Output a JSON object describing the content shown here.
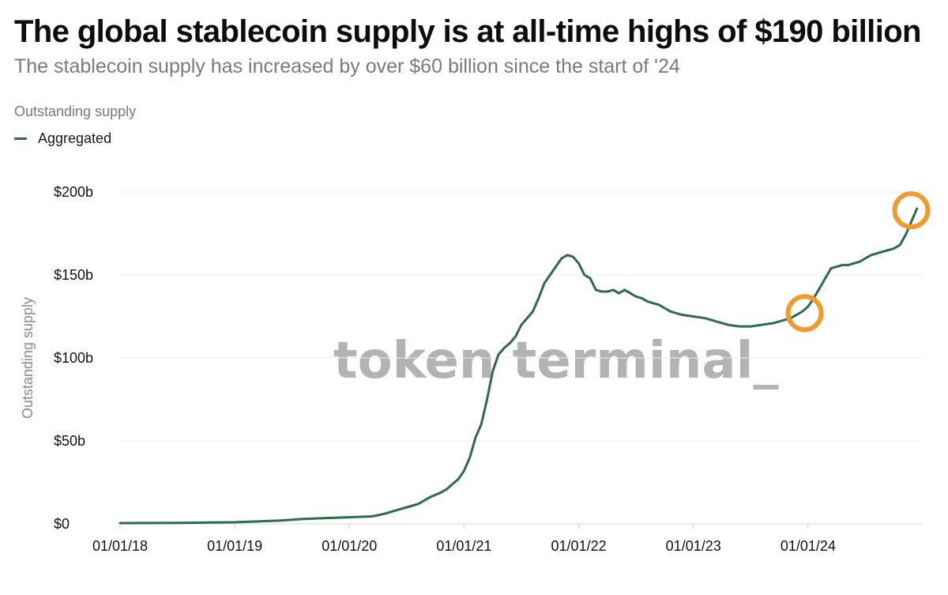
{
  "title": "The global stablecoin supply is at all-time highs of $190 billion",
  "subtitle": "The stablecoin supply has increased by over $60 billion since the start of '24",
  "legend": {
    "title": "Outstanding supply",
    "items": [
      {
        "label": "Aggregated",
        "color": "#2e6b48"
      }
    ]
  },
  "watermark": "token terminal_",
  "colors": {
    "line": "#2e6b48",
    "highlight": "#f39a2e",
    "grid": "#ececec"
  },
  "chart_data": {
    "type": "line",
    "title": "The global stablecoin supply is at all-time highs of $190 billion",
    "xlabel": "",
    "ylabel": "Outstanding supply",
    "ylim": [
      0,
      200
    ],
    "xlim": [
      2018.0,
      2025.0
    ],
    "legend_position": "top-left",
    "grid": true,
    "y_ticks": [
      {
        "value": 0,
        "label": "$0"
      },
      {
        "value": 50,
        "label": "$50b"
      },
      {
        "value": 100,
        "label": "$100b"
      },
      {
        "value": 150,
        "label": "$150b"
      },
      {
        "value": 200,
        "label": "$200b"
      }
    ],
    "x_ticks": [
      {
        "value": 2018,
        "label": "01/01/18"
      },
      {
        "value": 2019,
        "label": "01/01/19"
      },
      {
        "value": 2020,
        "label": "01/01/20"
      },
      {
        "value": 2021,
        "label": "01/01/21"
      },
      {
        "value": 2022,
        "label": "01/01/22"
      },
      {
        "value": 2023,
        "label": "01/01/23"
      },
      {
        "value": 2024,
        "label": "01/01/24"
      }
    ],
    "series": [
      {
        "name": "Aggregated",
        "x": [
          2018.0,
          2018.5,
          2019.0,
          2019.2,
          2019.4,
          2019.5,
          2019.6,
          2019.8,
          2020.0,
          2020.2,
          2020.3,
          2020.4,
          2020.5,
          2020.6,
          2020.7,
          2020.8,
          2020.85,
          2020.9,
          2020.95,
          2021.0,
          2021.05,
          2021.1,
          2021.15,
          2021.2,
          2021.25,
          2021.3,
          2021.35,
          2021.4,
          2021.45,
          2021.5,
          2021.55,
          2021.6,
          2021.65,
          2021.7,
          2021.75,
          2021.8,
          2021.85,
          2021.9,
          2021.95,
          2022.0,
          2022.05,
          2022.1,
          2022.15,
          2022.2,
          2022.25,
          2022.3,
          2022.35,
          2022.4,
          2022.45,
          2022.5,
          2022.55,
          2022.6,
          2022.65,
          2022.7,
          2022.75,
          2022.8,
          2022.85,
          2022.9,
          2023.0,
          2023.1,
          2023.2,
          2023.3,
          2023.4,
          2023.5,
          2023.6,
          2023.7,
          2023.75,
          2023.8,
          2023.85,
          2023.9,
          2023.95,
          2024.0,
          2024.05,
          2024.1,
          2024.15,
          2024.2,
          2024.25,
          2024.3,
          2024.35,
          2024.4,
          2024.45,
          2024.5,
          2024.55,
          2024.6,
          2024.65,
          2024.7,
          2024.75,
          2024.8,
          2024.85,
          2024.9,
          2024.95
        ],
        "values": [
          0.5,
          0.6,
          1.0,
          1.5,
          2.0,
          2.5,
          3.0,
          3.5,
          4.0,
          4.5,
          6.0,
          8.0,
          10.0,
          12.0,
          16.0,
          19.0,
          21.0,
          24.0,
          27.0,
          32.0,
          40.0,
          52.0,
          60.0,
          75.0,
          92.0,
          102.0,
          106.0,
          109.0,
          113.0,
          120.0,
          124.0,
          128.0,
          136.0,
          145.0,
          150.0,
          155.0,
          160.0,
          162.0,
          161.0,
          157.0,
          150.0,
          148.0,
          141.0,
          140.0,
          140.0,
          141.0,
          139.0,
          141.0,
          139.0,
          137.0,
          136.0,
          134.0,
          133.0,
          132.0,
          130.0,
          128.0,
          127.0,
          126.0,
          125.0,
          124.0,
          122.0,
          120.0,
          119.0,
          119.0,
          120.0,
          121.0,
          122.0,
          123.0,
          124.0,
          126.0,
          128.0,
          131.0,
          136.0,
          142.0,
          148.0,
          154.0,
          155.0,
          156.0,
          156.0,
          157.0,
          158.0,
          160.0,
          162.0,
          163.0,
          164.0,
          165.0,
          166.0,
          168.0,
          174.0,
          182.0,
          190.0
        ]
      }
    ],
    "annotations": [
      {
        "type": "circle",
        "x": 2023.97,
        "y": 127,
        "label": ""
      },
      {
        "type": "circle",
        "x": 2024.9,
        "y": 189,
        "label": ""
      }
    ]
  }
}
